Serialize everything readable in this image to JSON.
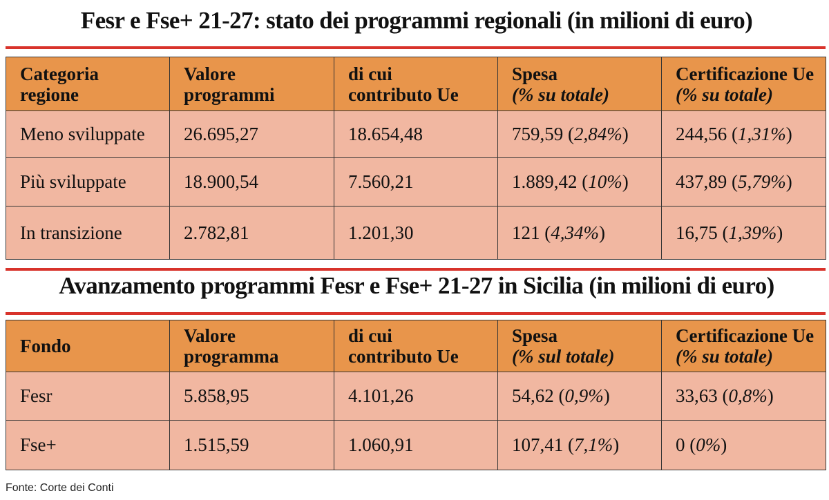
{
  "tables": [
    {
      "title": "Fesr e Fse+ 21-27: stato dei programmi regionali (in milioni di euro)",
      "header": [
        [
          "Categoria",
          "regione"
        ],
        [
          "Valore",
          "programmi"
        ],
        [
          "di cui",
          "contributo Ue"
        ],
        [
          "Spesa",
          "(% su totale)"
        ],
        [
          "Certificazione Ue",
          "(% su totale)"
        ]
      ],
      "rows": [
        [
          "Meno sviluppate",
          "26.695,27",
          "18.654,48",
          "759,59 (2,84%)",
          "244,56 (1,31%)"
        ],
        [
          "Più sviluppate",
          "18.900,54",
          "7.560,21",
          "1.889,42 (10%)",
          "437,89 (5,79%)"
        ],
        [
          "In transizione",
          "2.782,81",
          "1.201,30",
          "121 (4,34%)",
          "16,75 (1,39%)"
        ]
      ]
    },
    {
      "title": "Avanzamento programmi Fesr e Fse+ 21-27 in Sicilia (in milioni di euro)",
      "header": [
        [
          "Fondo"
        ],
        [
          "Valore",
          "programma"
        ],
        [
          "di cui",
          "contributo Ue"
        ],
        [
          "Spesa",
          "(% sul totale)"
        ],
        [
          "Certificazione Ue",
          "(% su totale)"
        ]
      ],
      "rows": [
        [
          "Fesr",
          "5.858,95",
          "4.101,26",
          "54,62 (0,9%)",
          "33,63 (0,8%)"
        ],
        [
          "Fse+",
          "1.515,59",
          "1.060,91",
          "107,41 (7,1%)",
          "0 (0%)"
        ]
      ]
    }
  ],
  "source": "Fonte: Corte dei Conti"
}
